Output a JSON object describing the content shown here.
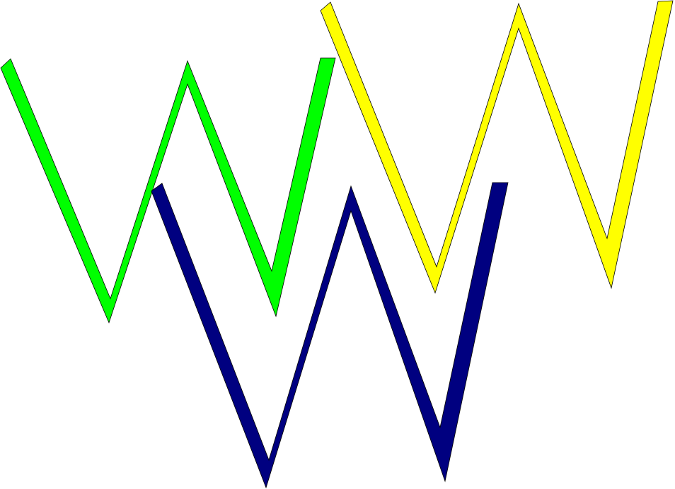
{
  "shapes": [
    {
      "name": "green-zigzag",
      "color": "#00ff00",
      "stroke": "#000000"
    },
    {
      "name": "yellow-zigzag",
      "color": "#ffff00",
      "stroke": "#000000"
    },
    {
      "name": "navy-zigzag",
      "color": "#000080",
      "stroke": "#000000"
    }
  ]
}
